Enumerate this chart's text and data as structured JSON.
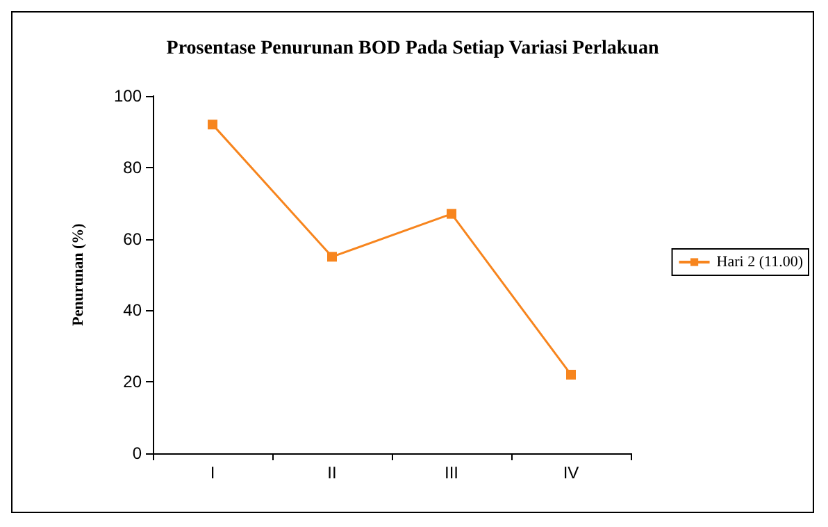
{
  "chart_data": {
    "type": "line",
    "title": "Prosentase Penurunan BOD Pada Setiap Variasi Perlakuan",
    "ylabel": "Penurunan (%)",
    "categories": [
      "I",
      "II",
      "III",
      "IV"
    ],
    "series": [
      {
        "name": "Hari 2 (11.00)",
        "color": "#f7851e",
        "values": [
          92,
          55,
          67,
          22
        ]
      }
    ],
    "ylim": [
      0,
      100
    ],
    "yticks": [
      0,
      20,
      40,
      60,
      80,
      100
    ],
    "grid": false,
    "legend": "right",
    "marker": "square",
    "line_style": "solid"
  }
}
